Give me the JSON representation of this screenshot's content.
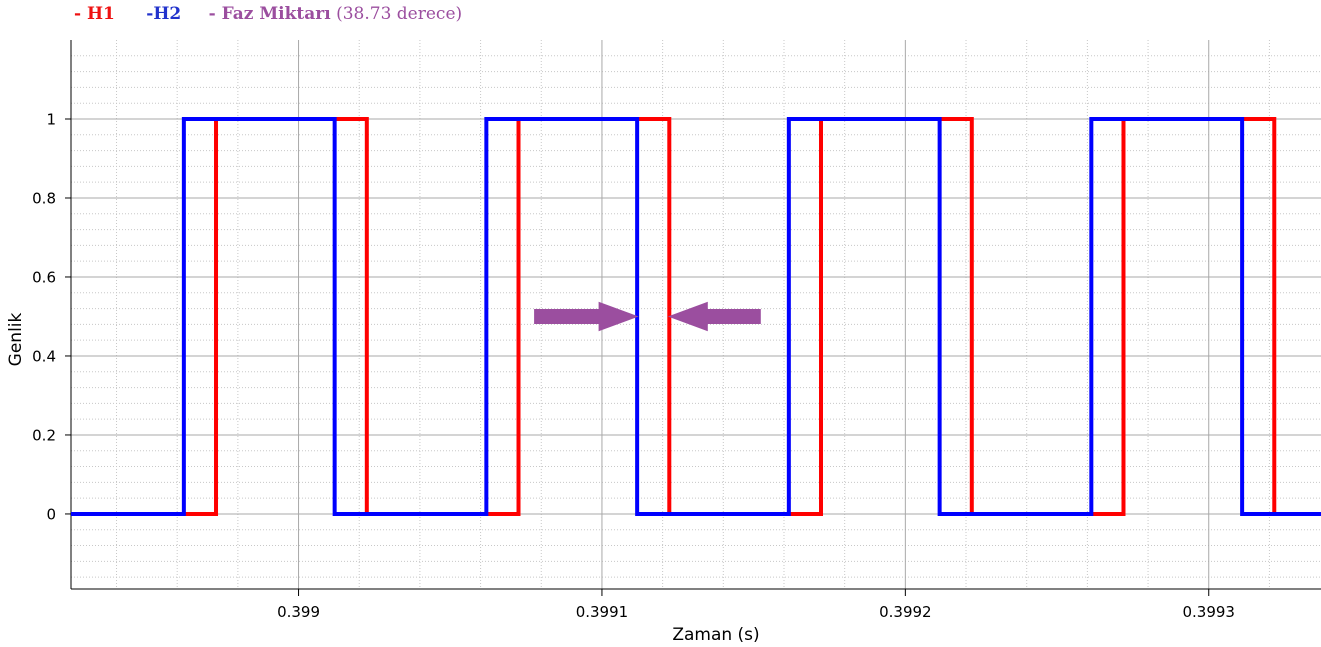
{
  "legend": {
    "h1": "- H1",
    "h2": "-H2",
    "phase_name": "- Faz Miktarı",
    "phase_value": "(38.73 derece)"
  },
  "chart_data": {
    "type": "line",
    "step": true,
    "xlabel": "Zaman (s)",
    "ylabel": "Genlik",
    "xlim": [
      0.398925,
      0.399337
    ],
    "ylim": [
      -0.19,
      1.2
    ],
    "x_ticks": [
      {
        "value": 0.399,
        "label": "0.399"
      },
      {
        "value": 0.3991,
        "label": "0.3991"
      },
      {
        "value": 0.3992,
        "label": "0.3992"
      },
      {
        "value": 0.3993,
        "label": "0.3993"
      }
    ],
    "y_ticks": [
      {
        "value": 0,
        "label": "0"
      },
      {
        "value": 0.2,
        "label": "0.2"
      },
      {
        "value": 0.4,
        "label": "0.4"
      },
      {
        "value": 0.6,
        "label": "0.6"
      },
      {
        "value": 0.8,
        "label": "0.8"
      },
      {
        "value": 1,
        "label": "1"
      }
    ],
    "grid": true,
    "legend_position": "top-left",
    "series": [
      {
        "name": "H1",
        "color": "#ff0000",
        "x": [
          0.398925,
          0.3989728,
          0.3989728,
          0.3990225,
          0.3990225,
          0.3990725,
          0.3990725,
          0.3991222,
          0.3991222,
          0.3991722,
          0.3991722,
          0.3992219,
          0.3992219,
          0.3992719,
          0.3992719,
          0.3993216,
          0.3993216,
          0.399337
        ],
        "y": [
          0,
          0,
          1,
          1,
          0,
          0,
          1,
          1,
          0,
          0,
          1,
          1,
          0,
          0,
          1,
          1,
          0,
          0
        ]
      },
      {
        "name": "H2",
        "color": "#0000ff",
        "x": [
          0.398925,
          0.3989622,
          0.3989622,
          0.3990119,
          0.3990119,
          0.3990619,
          0.3990619,
          0.3991116,
          0.3991116,
          0.3991616,
          0.3991616,
          0.3992113,
          0.3992113,
          0.3992613,
          0.3992613,
          0.399311,
          0.399311,
          0.399337
        ],
        "y": [
          0,
          0,
          1,
          1,
          0,
          0,
          1,
          1,
          0,
          0,
          1,
          1,
          0,
          0,
          1,
          1,
          0,
          0
        ]
      }
    ],
    "annotations": [
      {
        "type": "arrow",
        "direction": "right",
        "color": "#9b4e9f",
        "x_from": 0.3990778,
        "x_to": 0.3991116,
        "y": 0.5
      },
      {
        "type": "arrow",
        "direction": "left",
        "color": "#9b4e9f",
        "x_from": 0.3991522,
        "x_to": 0.3991222,
        "y": 0.5
      }
    ]
  }
}
